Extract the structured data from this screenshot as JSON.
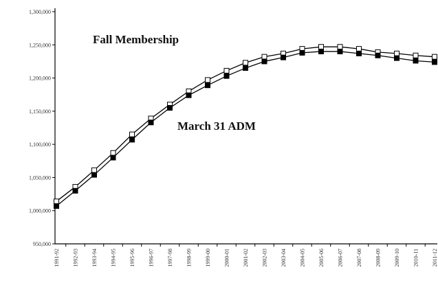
{
  "chart_data": {
    "type": "line",
    "categories": [
      "1991-92",
      "1992-93",
      "1993-94",
      "1994-95",
      "1995-96",
      "1996-97",
      "1997-98",
      "1998-99",
      "1999-00",
      "2000-01",
      "2001-02",
      "2002-03",
      "2003-04",
      "2004-05",
      "2005-06",
      "2006-07",
      "2007-08",
      "2008-09",
      "2009-10",
      "2010-11",
      "2011-12"
    ],
    "series": [
      {
        "name": "Fall Membership",
        "color": "#000000",
        "marker": "open-square",
        "values": [
          1014000,
          1036000,
          1061000,
          1087000,
          1115000,
          1139000,
          1160000,
          1180000,
          1197000,
          1211000,
          1223000,
          1232000,
          1237000,
          1244000,
          1247000,
          1247000,
          1244000,
          1239000,
          1237000,
          1234000,
          1232000
        ]
      },
      {
        "name": "March 31 ADM",
        "color": "#000000",
        "marker": "filled-square",
        "values": [
          1007000,
          1030000,
          1054000,
          1080000,
          1107000,
          1133000,
          1155000,
          1174000,
          1189000,
          1203000,
          1215000,
          1225000,
          1231000,
          1238000,
          1240000,
          1240000,
          1237000,
          1234000,
          1230000,
          1226000,
          1224000
        ]
      }
    ],
    "ylim": [
      950000,
      1300000
    ],
    "yticks": [
      {
        "value": 950000,
        "label": "950,000"
      },
      {
        "value": 1000000,
        "label": "1,000,000"
      },
      {
        "value": 1050000,
        "label": "1,050,000"
      },
      {
        "value": 1100000,
        "label": "1,100,000"
      },
      {
        "value": 1150000,
        "label": "1,150,000"
      },
      {
        "value": 1200000,
        "label": "1,200,000"
      },
      {
        "value": 1250000,
        "label": "1,250,000"
      },
      {
        "value": 1300000,
        "label": "1,300,000"
      }
    ],
    "grid": false
  }
}
